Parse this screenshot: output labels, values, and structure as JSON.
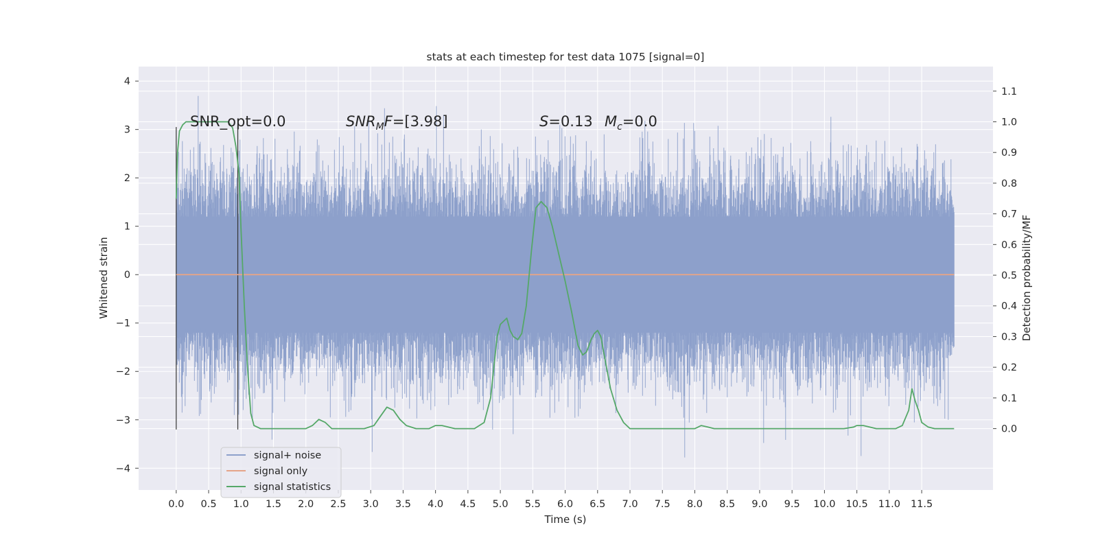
{
  "chart_data": {
    "type": "line",
    "title": "stats at each timestep for test data 1075 [signal=0]",
    "xlabel": "Time (s)",
    "ylabel": "Whitened strain",
    "ylabel_right": "Detection probability/MF",
    "xlim": [
      -0.58,
      12.6
    ],
    "ylim": [
      -4.45,
      4.3
    ],
    "ylim_right": [
      -0.2,
      1.18
    ],
    "x_ticks": [
      "0.0",
      "0.5",
      "1.0",
      "1.5",
      "2.0",
      "2.5",
      "3.0",
      "3.5",
      "4.0",
      "4.5",
      "5.0",
      "5.5",
      "6.0",
      "6.5",
      "7.0",
      "7.5",
      "8.0",
      "8.5",
      "9.0",
      "9.5",
      "10.0",
      "10.5",
      "11.0",
      "11.5"
    ],
    "y_ticks": [
      "4",
      "3",
      "2",
      "1",
      "0",
      "−1",
      "−2",
      "−3",
      "−4"
    ],
    "y_ticks_right": [
      "1.1",
      "1.0",
      "0.9",
      "0.8",
      "0.7",
      "0.6",
      "0.5",
      "0.4",
      "0.3",
      "0.2",
      "0.1",
      "0.0"
    ],
    "annotations": {
      "snr_opt": "SNR_opt=0.0",
      "snr_mf_sym": "SNR",
      "snr_mf_sub": "M",
      "snr_mf_sym2": "F",
      "snr_mf_val": "=[3.98]",
      "s_sym": "S",
      "s_val": "=0.13",
      "mc_sym": "M",
      "mc_sub": "c",
      "mc_val": "=0.0"
    },
    "legend": {
      "placement": "lower-left",
      "entries": [
        {
          "label": "signal+ noise",
          "color": "#8da0cb"
        },
        {
          "label": "signal only",
          "color": "#e5a488"
        },
        {
          "label": "signal statistics",
          "color": "#55a868"
        }
      ]
    },
    "series": [
      {
        "name": "signal+ noise",
        "color": "#8da0cb",
        "style": "dense_noise",
        "t_range": [
          0,
          12.0
        ],
        "amplitude_envelope": [
          -4.1,
          3.9
        ]
      },
      {
        "name": "signal only",
        "color": "#e5a488",
        "x": [
          0,
          12.0
        ],
        "y": [
          0,
          0
        ]
      },
      {
        "name": "signal statistics",
        "color": "#55a868",
        "axis": "right",
        "x": [
          0.0,
          0.02,
          0.05,
          0.1,
          0.15,
          0.3,
          0.5,
          0.65,
          0.8,
          0.87,
          0.92,
          0.97,
          1.0,
          1.05,
          1.1,
          1.15,
          1.2,
          1.3,
          1.5,
          1.8,
          2.0,
          2.1,
          2.2,
          2.3,
          2.4,
          2.5,
          2.7,
          2.9,
          3.05,
          3.15,
          3.25,
          3.35,
          3.45,
          3.55,
          3.7,
          3.9,
          4.0,
          4.1,
          4.3,
          4.6,
          4.75,
          4.85,
          4.95,
          5.0,
          5.1,
          5.15,
          5.2,
          5.27,
          5.33,
          5.4,
          5.48,
          5.55,
          5.63,
          5.72,
          5.8,
          5.9,
          6.0,
          6.1,
          6.2,
          6.27,
          6.33,
          6.4,
          6.45,
          6.5,
          6.55,
          6.62,
          6.7,
          6.8,
          6.9,
          7.0,
          7.1,
          7.2,
          7.5,
          8.0,
          8.1,
          8.2,
          8.3,
          8.5,
          9.0,
          9.5,
          10.0,
          10.3,
          10.45,
          10.5,
          10.6,
          10.8,
          11.0,
          11.1,
          11.2,
          11.3,
          11.35,
          11.4,
          11.45,
          11.5,
          11.6,
          11.7,
          11.8,
          11.9,
          12.0
        ],
        "y": [
          0.75,
          0.9,
          0.97,
          0.99,
          1.0,
          1.0,
          1.0,
          1.0,
          1.0,
          0.98,
          0.92,
          0.83,
          0.65,
          0.4,
          0.2,
          0.05,
          0.01,
          0.0,
          0.0,
          0.0,
          0.0,
          0.01,
          0.03,
          0.02,
          0.0,
          0.0,
          0.0,
          0.0,
          0.01,
          0.04,
          0.07,
          0.06,
          0.03,
          0.01,
          0.0,
          0.0,
          0.01,
          0.01,
          0.0,
          0.0,
          0.02,
          0.1,
          0.3,
          0.34,
          0.36,
          0.32,
          0.3,
          0.29,
          0.31,
          0.4,
          0.58,
          0.72,
          0.74,
          0.72,
          0.66,
          0.57,
          0.48,
          0.38,
          0.27,
          0.24,
          0.25,
          0.29,
          0.31,
          0.32,
          0.3,
          0.22,
          0.13,
          0.06,
          0.02,
          0.0,
          0.0,
          0.0,
          0.0,
          0.0,
          0.01,
          0.005,
          0.0,
          0.0,
          0.0,
          0.0,
          0.0,
          0.0,
          0.005,
          0.01,
          0.01,
          0.0,
          0.0,
          0.0,
          0.01,
          0.06,
          0.13,
          0.09,
          0.06,
          0.02,
          0.005,
          0.0,
          0.0,
          0.0,
          0.0
        ]
      }
    ],
    "vertical_markers": [
      0.0,
      0.95
    ],
    "grid": true,
    "background": "#eaeaf2"
  }
}
